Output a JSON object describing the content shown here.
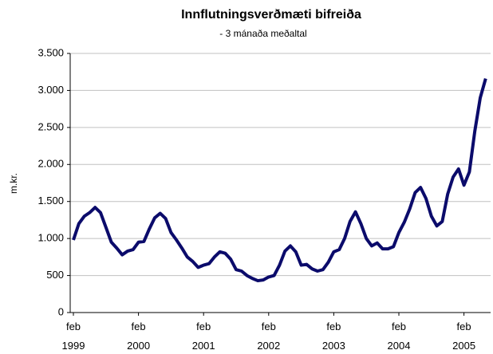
{
  "chart_data": {
    "type": "line",
    "title": "Innflutningsverðmæti bifreiða",
    "subtitle": "- 3 mánaða meðaltal",
    "ylabel": "m.kr.",
    "categories": [
      "feb 1999",
      null,
      null,
      null,
      null,
      null,
      null,
      null,
      null,
      null,
      null,
      null,
      "feb 2000",
      null,
      null,
      null,
      null,
      null,
      null,
      null,
      null,
      null,
      null,
      null,
      "feb 2001",
      null,
      null,
      null,
      null,
      null,
      null,
      null,
      null,
      null,
      null,
      null,
      "feb 2002",
      null,
      null,
      null,
      null,
      null,
      null,
      null,
      null,
      null,
      null,
      null,
      "feb 2003",
      null,
      null,
      null,
      null,
      null,
      null,
      null,
      null,
      null,
      null,
      null,
      "feb 2004",
      null,
      null,
      null,
      null,
      null,
      null,
      null,
      null,
      null,
      null,
      null,
      "feb 2005",
      null,
      null,
      null,
      null
    ],
    "series": [
      {
        "name": "Innflutningsverðmæti",
        "color": "#0b0b6b",
        "values": [
          980,
          1200,
          1300,
          1350,
          1420,
          1350,
          1150,
          950,
          870,
          780,
          830,
          850,
          950,
          960,
          1130,
          1280,
          1340,
          1270,
          1080,
          980,
          870,
          750,
          690,
          610,
          640,
          660,
          750,
          820,
          800,
          720,
          580,
          560,
          500,
          460,
          430,
          440,
          480,
          500,
          640,
          830,
          900,
          820,
          640,
          650,
          590,
          560,
          580,
          680,
          820,
          850,
          1000,
          1230,
          1360,
          1200,
          1000,
          900,
          940,
          860,
          860,
          890,
          1080,
          1220,
          1400,
          1620,
          1690,
          1540,
          1300,
          1170,
          1230,
          1600,
          1830,
          1940,
          1720,
          1900,
          2450,
          2900,
          3160
        ]
      }
    ],
    "ylim": [
      0,
      3500
    ],
    "yticks": [
      0,
      500,
      {
        "value": 1000,
        "label": "1.000"
      },
      {
        "value": 1500,
        "label": "1.500"
      },
      {
        "value": 2000,
        "label": "2.000"
      },
      {
        "value": 2500,
        "label": "2.500"
      },
      {
        "value": 3000,
        "label": "3.000"
      },
      {
        "value": 3500,
        "label": "3.500"
      }
    ],
    "grid": true
  }
}
